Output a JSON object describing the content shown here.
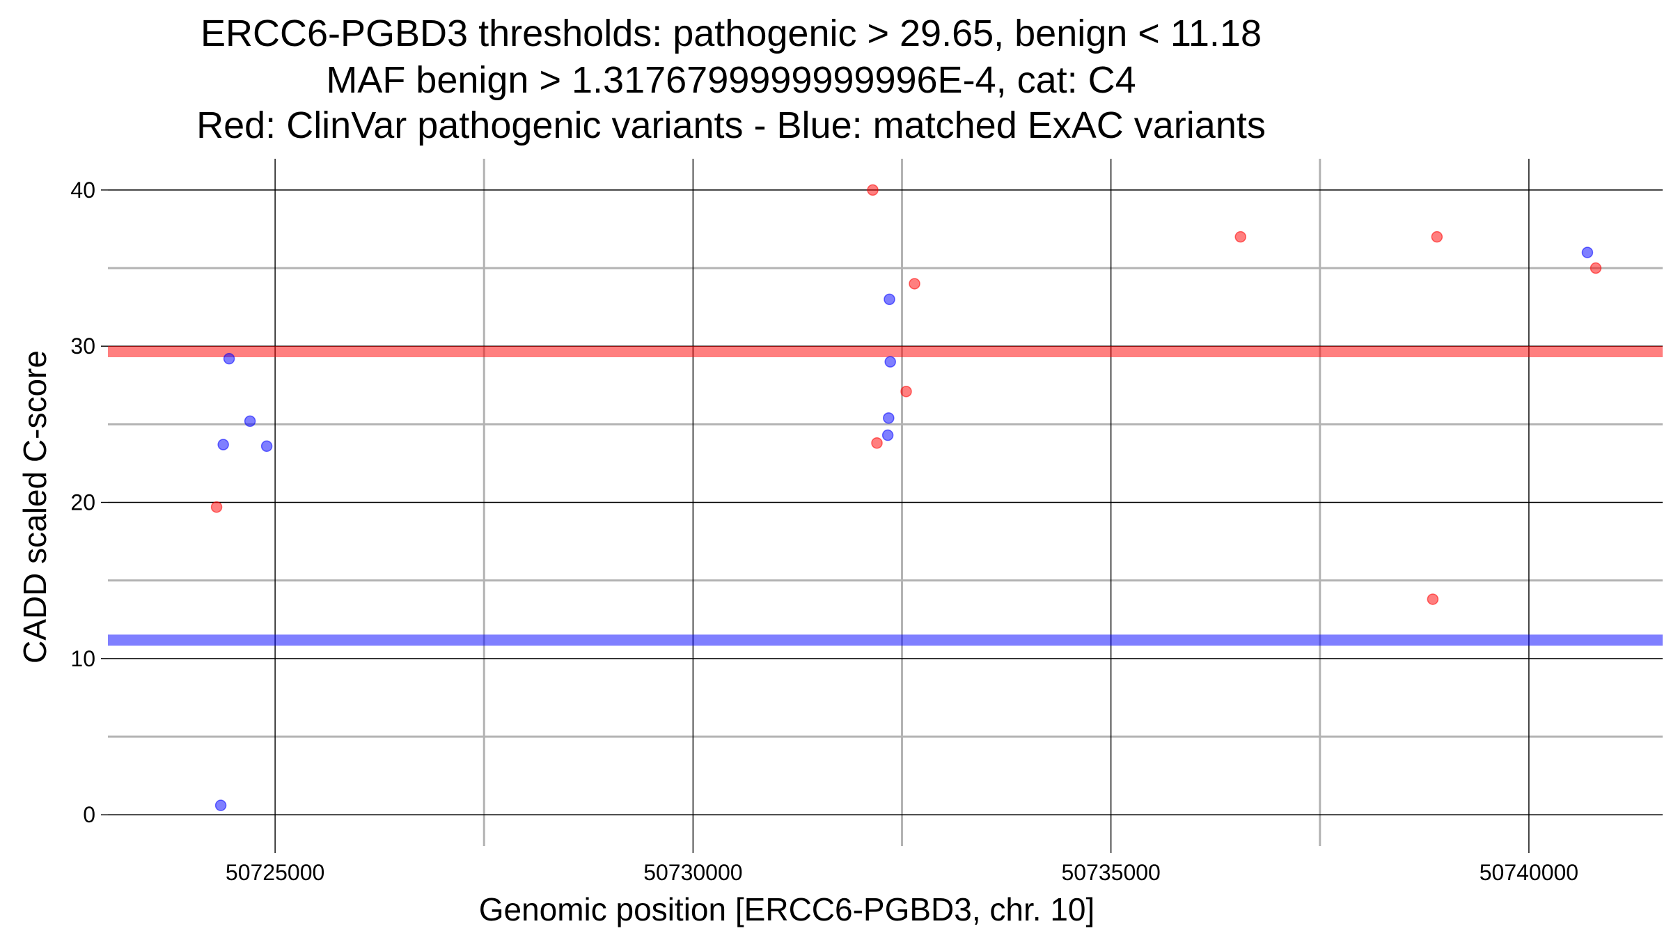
{
  "chart_data": {
    "type": "scatter",
    "title_lines": [
      "ERCC6-PGBD3 thresholds: pathogenic > 29.65, benign < 11.18",
      "MAF benign > 1.3176799999999996E-4, cat: C4",
      "Red: ClinVar pathogenic variants - Blue: matched ExAC variants"
    ],
    "xlabel": "Genomic position [ERCC6-PGBD3, chr. 10]",
    "ylabel": "CADD scaled C-score",
    "xlim": [
      50723000,
      50741600
    ],
    "ylim": [
      -2,
      42
    ],
    "x_ticks": [
      50725000,
      50730000,
      50735000,
      50740000
    ],
    "x_tick_labels": [
      "50725000",
      "50730000",
      "50735000",
      "50740000"
    ],
    "x_minor_grid": [
      50727500,
      50732500,
      50737500
    ],
    "y_ticks": [
      0,
      10,
      20,
      30,
      40
    ],
    "y_tick_labels": [
      "0",
      "10",
      "20",
      "30",
      "40"
    ],
    "y_minor_grid": [
      5,
      15,
      25,
      35
    ],
    "thresholds": [
      {
        "name": "pathogenic",
        "value": 29.65,
        "color": "#ff0000"
      },
      {
        "name": "benign",
        "value": 11.18,
        "color": "#0000ff"
      }
    ],
    "series": [
      {
        "name": "ClinVar pathogenic variants",
        "color": "#ff0000",
        "points": [
          {
            "x": 50724300,
            "y": 19.7
          },
          {
            "x": 50732150,
            "y": 40.0
          },
          {
            "x": 50732200,
            "y": 23.8
          },
          {
            "x": 50732650,
            "y": 34.0
          },
          {
            "x": 50732550,
            "y": 27.1
          },
          {
            "x": 50736550,
            "y": 37.0
          },
          {
            "x": 50738850,
            "y": 13.8
          },
          {
            "x": 50738900,
            "y": 37.0
          },
          {
            "x": 50740800,
            "y": 35.0
          }
        ]
      },
      {
        "name": "matched ExAC variants",
        "color": "#0000ff",
        "points": [
          {
            "x": 50724350,
            "y": 0.6
          },
          {
            "x": 50724380,
            "y": 23.7
          },
          {
            "x": 50724450,
            "y": 29.2
          },
          {
            "x": 50724700,
            "y": 25.2
          },
          {
            "x": 50724900,
            "y": 23.6
          },
          {
            "x": 50732350,
            "y": 33.0
          },
          {
            "x": 50732360,
            "y": 29.0
          },
          {
            "x": 50732340,
            "y": 25.4
          },
          {
            "x": 50732330,
            "y": 24.3
          },
          {
            "x": 50740700,
            "y": 36.0
          }
        ]
      }
    ]
  }
}
